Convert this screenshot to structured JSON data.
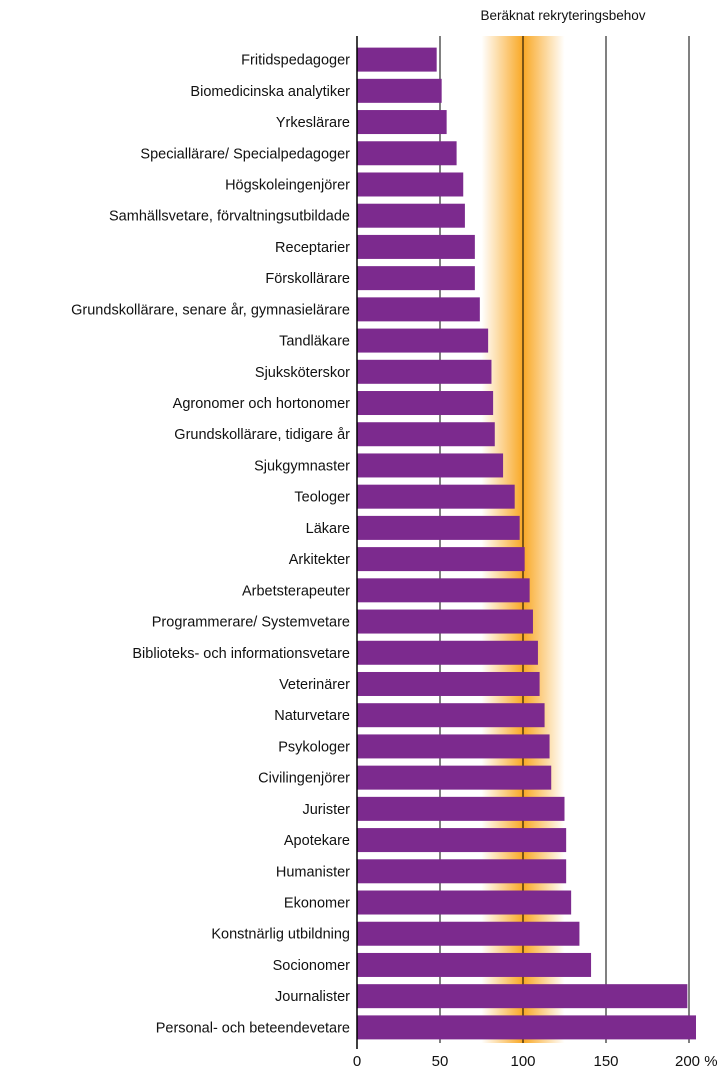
{
  "chart_data": {
    "type": "bar",
    "orientation": "horizontal",
    "annotation": "Beräknat rekryteringsbehov",
    "categories": [
      "Fritidspedagoger",
      "Biomedicinska analytiker",
      "Yrkeslärare",
      "Speciallärare/ Specialpedagoger",
      "Högskoleingenjörer",
      "Samhällsvetare, förvaltningsutbildade",
      "Receptarier",
      "Förskollärare",
      "Grundskollärare, senare år, gymnasielärare",
      "Tandläkare",
      "Sjuksköterskor",
      "Agronomer och hortonomer",
      "Grundskollärare, tidigare år",
      "Sjukgymnaster",
      "Teologer",
      "Läkare",
      "Arkitekter",
      "Arbetsterapeuter",
      "Programmerare/ Systemvetare",
      "Biblioteks- och informationsvetare",
      "Veterinärer",
      "Naturvetare",
      "Psykologer",
      "Civilingenjörer",
      "Jurister",
      "Apotekare",
      "Humanister",
      "Ekonomer",
      "Konstnärlig utbildning",
      "Socionomer",
      "Journalister",
      "Personal- och beteendevetare"
    ],
    "values": [
      48,
      51,
      54,
      60,
      64,
      65,
      71,
      71,
      74,
      79,
      81,
      82,
      83,
      88,
      95,
      98,
      101,
      104,
      106,
      109,
      110,
      113,
      116,
      117,
      125,
      126,
      126,
      129,
      134,
      141,
      199,
      205
    ],
    "xlim": [
      0,
      200
    ],
    "xticks": [
      "0",
      "50",
      "100",
      "150",
      "200 %"
    ],
    "recruitment_band": [
      75,
      125
    ],
    "bar_color": "#7c2a8e",
    "band_color": "#f9a825",
    "grid": true
  }
}
